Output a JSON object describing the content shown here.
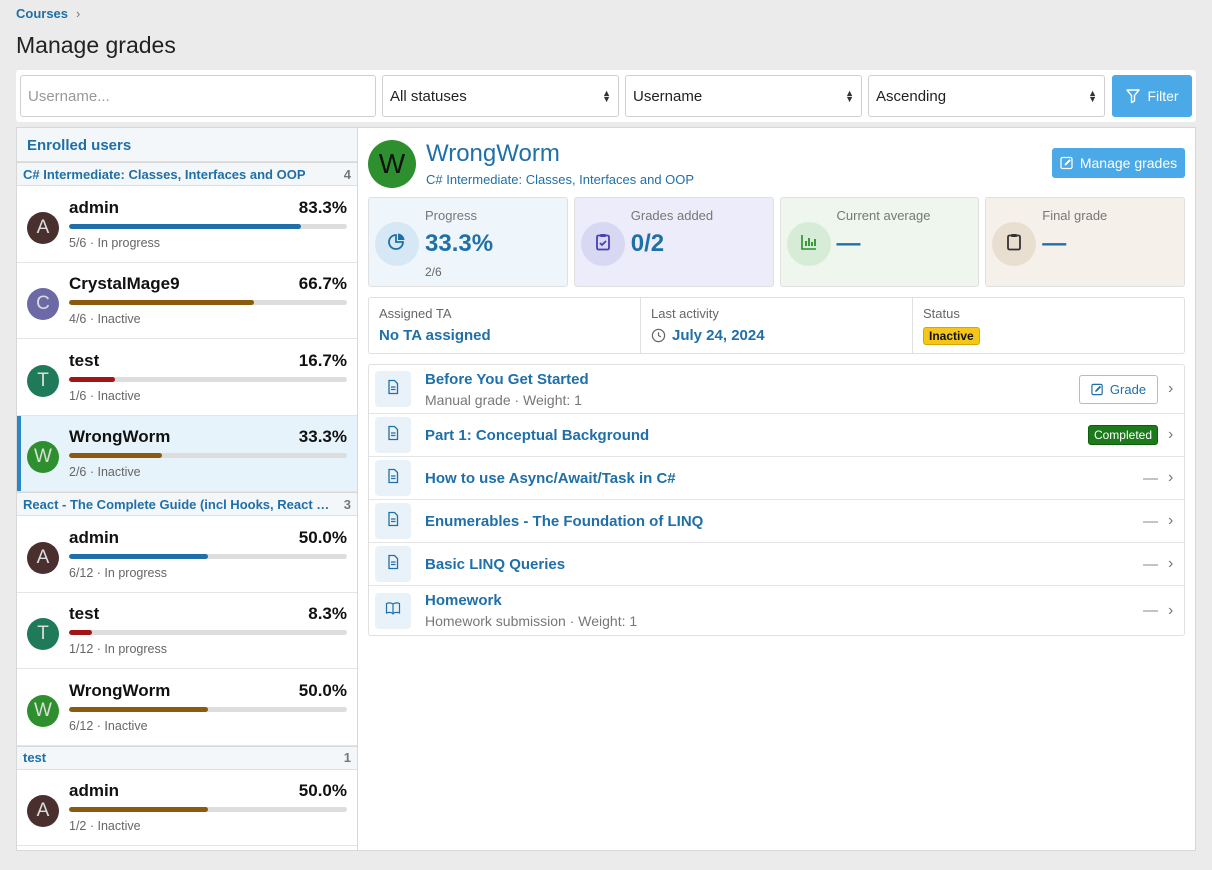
{
  "breadcrumb": {
    "root": "Courses",
    "sep": "›"
  },
  "page_title": "Manage grades",
  "filter": {
    "username_placeholder": "Username...",
    "status": "All statuses",
    "sort_field": "Username",
    "sort_order": "Ascending",
    "filter_label": "Filter"
  },
  "left": {
    "header": "Enrolled users"
  },
  "groups": [
    {
      "name": "C# Intermediate: Classes, Interfaces and OOP",
      "count": "4",
      "users": [
        {
          "initial": "A",
          "name": "admin",
          "pct": "83.3%",
          "progress": 0.833,
          "sub": "5/6 · In progress",
          "avatar_color": "#4a2f2f",
          "bar_color": "#1f6fa8",
          "selected": false
        },
        {
          "initial": "C",
          "name": "CrystalMage9",
          "pct": "66.7%",
          "progress": 0.667,
          "sub": "4/6 · Inactive",
          "avatar_color": "#6c6aa6",
          "bar_color": "#8a5a0f",
          "selected": false
        },
        {
          "initial": "T",
          "name": "test",
          "pct": "16.7%",
          "progress": 0.167,
          "sub": "1/6 · Inactive",
          "avatar_color": "#1f7a5a",
          "bar_color": "#a31515",
          "selected": false
        },
        {
          "initial": "W",
          "name": "WrongWorm",
          "pct": "33.3%",
          "progress": 0.333,
          "sub": "2/6 · Inactive",
          "avatar_color": "#2d8f2d",
          "bar_color": "#8a5a0f",
          "selected": true
        }
      ]
    },
    {
      "name": "React - The Complete Guide (incl Hooks, React Router, Redux)",
      "count": "3",
      "users": [
        {
          "initial": "A",
          "name": "admin",
          "pct": "50.0%",
          "progress": 0.5,
          "sub": "6/12 · In progress",
          "avatar_color": "#4a2f2f",
          "bar_color": "#1f6fa8",
          "selected": false
        },
        {
          "initial": "T",
          "name": "test",
          "pct": "8.3%",
          "progress": 0.083,
          "sub": "1/12 · In progress",
          "avatar_color": "#1f7a5a",
          "bar_color": "#a31515",
          "selected": false
        },
        {
          "initial": "W",
          "name": "WrongWorm",
          "pct": "50.0%",
          "progress": 0.5,
          "sub": "6/12 · Inactive",
          "avatar_color": "#2d8f2d",
          "bar_color": "#8a5a0f",
          "selected": false
        }
      ]
    },
    {
      "name": "test",
      "count": "1",
      "users": [
        {
          "initial": "A",
          "name": "admin",
          "pct": "50.0%",
          "progress": 0.5,
          "sub": "1/2 · Inactive",
          "avatar_color": "#4a2f2f",
          "bar_color": "#8a5a0f",
          "selected": false
        }
      ]
    }
  ],
  "detail": {
    "initial": "W",
    "name": "WrongWorm",
    "course": "C# Intermediate: Classes, Interfaces and OOP",
    "manage_label": "Manage grades",
    "stats": [
      {
        "label": "Progress",
        "value": "33.3%",
        "sub": "2/6",
        "bg": "#eef6fb",
        "circle": "#d6e8f5",
        "icon": "pie-chart-icon"
      },
      {
        "label": "Grades added",
        "value": "0/2",
        "sub": "",
        "bg": "#ececfa",
        "circle": "#d8d8f3",
        "icon": "clipboard-check-icon"
      },
      {
        "label": "Current average",
        "value": "—",
        "sub": "",
        "bg": "#eef6ee",
        "circle": "#d6ecd6",
        "icon": "bar-chart-icon"
      },
      {
        "label": "Final grade",
        "value": "—",
        "sub": "",
        "bg": "#f5f1ea",
        "circle": "#e8dfd1",
        "icon": "clipboard-icon"
      }
    ],
    "info": {
      "ta_label": "Assigned TA",
      "ta_value": "No TA assigned",
      "activity_label": "Last activity",
      "activity_value": "July 24, 2024",
      "status_label": "Status",
      "status_value": "Inactive"
    },
    "items": [
      {
        "title": "Before You Get Started",
        "sub": "Manual grade · Weight: 1",
        "right": "grade",
        "grade_label": "Grade",
        "icon": "document-icon"
      },
      {
        "title": "Part 1: Conceptual Background",
        "sub": "",
        "right": "completed",
        "badge": "Completed",
        "icon": "document-icon"
      },
      {
        "title": "How to use Async/Await/Task in C#",
        "sub": "",
        "right": "dash",
        "dash": "—",
        "icon": "document-icon"
      },
      {
        "title": "Enumerables - The Foundation of LINQ",
        "sub": "",
        "right": "dash",
        "dash": "—",
        "icon": "document-icon"
      },
      {
        "title": "Basic LINQ Queries",
        "sub": "",
        "right": "dash",
        "dash": "—",
        "icon": "document-icon"
      },
      {
        "title": "Homework",
        "sub": "Homework submission · Weight: 1",
        "right": "dash",
        "dash": "—",
        "icon": "book-icon"
      }
    ]
  }
}
